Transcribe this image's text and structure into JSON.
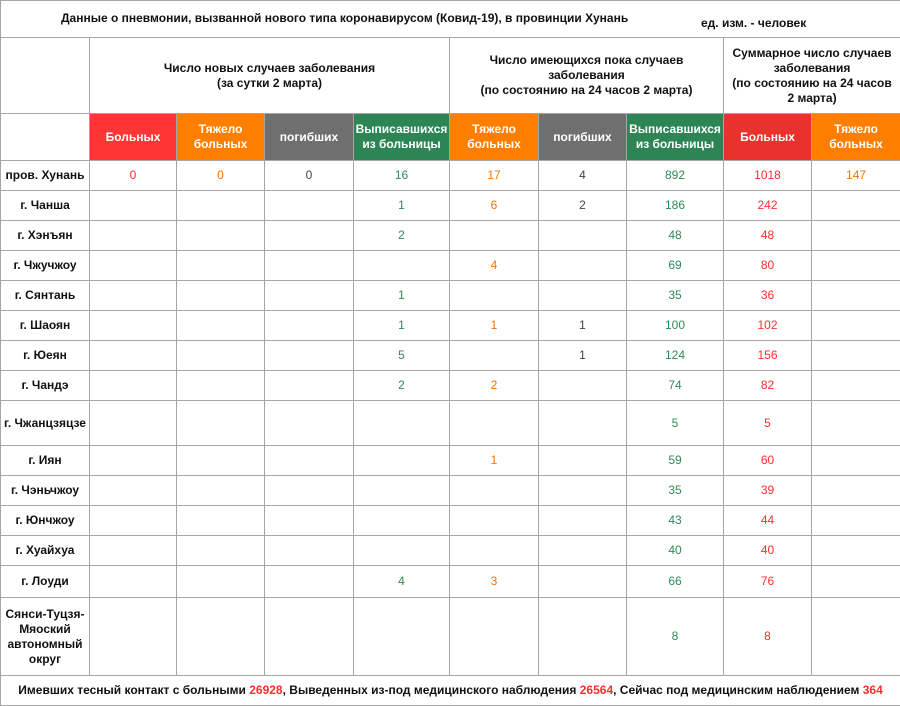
{
  "title": "Данные о пневмонии, вызванной нового типа коронавирусом (Ковид-19), в провинции Хунань",
  "unit": "ед. изм. - человек",
  "groups": [
    "Число новых случаев заболевания\n(за сутки 2 марта)",
    "Число имеющихся пока случаев заболевания\n(по состоянию на 24 часов 2 марта)",
    "Суммарное число случаев заболевания\n(по состоянию на 24 часов 2 марта)"
  ],
  "subheaders": [
    "Больных",
    "Тяжело больных",
    "погибших",
    "Выписавшихся из больницы",
    "Тяжело больных",
    "погибших",
    "Выписавшихся из больницы",
    "Больных",
    "Тяжело больных"
  ],
  "colors": {
    "red": "#fe3535",
    "orange": "#fe7f00",
    "gray": "#6f6f6f",
    "green": "#2d8555"
  },
  "rows": [
    {
      "name": "пров. Хунань",
      "v": [
        "0",
        "0",
        "0",
        "16",
        "17",
        "4",
        "892",
        "1018",
        "147"
      ]
    },
    {
      "name": "г. Чанша",
      "v": [
        "",
        "",
        "",
        "1",
        "6",
        "2",
        "186",
        "242",
        ""
      ]
    },
    {
      "name": "г. Хэнъян",
      "v": [
        "",
        "",
        "",
        "2",
        "",
        "",
        "48",
        "48",
        ""
      ]
    },
    {
      "name": "г. Чжучжоу",
      "v": [
        "",
        "",
        "",
        "",
        "4",
        "",
        "69",
        "80",
        ""
      ]
    },
    {
      "name": "г. Сянтань",
      "v": [
        "",
        "",
        "",
        "1",
        "",
        "",
        "35",
        "36",
        ""
      ]
    },
    {
      "name": "г. Шаоян",
      "v": [
        "",
        "",
        "",
        "1",
        "1",
        "1",
        "100",
        "102",
        ""
      ]
    },
    {
      "name": "г. Юеян",
      "v": [
        "",
        "",
        "",
        "5",
        "",
        "1",
        "124",
        "156",
        ""
      ]
    },
    {
      "name": "г. Чандэ",
      "v": [
        "",
        "",
        "",
        "2",
        "2",
        "",
        "74",
        "82",
        ""
      ]
    },
    {
      "name": "г. Чжанцзяцзе",
      "v": [
        "",
        "",
        "",
        "",
        "",
        "",
        "5",
        "5",
        ""
      ]
    },
    {
      "name": "г. Иян",
      "v": [
        "",
        "",
        "",
        "",
        "1",
        "",
        "59",
        "60",
        ""
      ]
    },
    {
      "name": "г. Чэньчжоу",
      "v": [
        "",
        "",
        "",
        "",
        "",
        "",
        "35",
        "39",
        ""
      ]
    },
    {
      "name": "г. Юнчжоу",
      "v": [
        "",
        "",
        "",
        "",
        "",
        "",
        "43",
        "44",
        ""
      ]
    },
    {
      "name": "г. Хуайхуа",
      "v": [
        "",
        "",
        "",
        "",
        "",
        "",
        "40",
        "40",
        ""
      ]
    },
    {
      "name": "г. Лоуди",
      "v": [
        "",
        "",
        "",
        "4",
        "3",
        "",
        "66",
        "76",
        ""
      ]
    },
    {
      "name": "Сянси-Туцзя-Мяоский автономный округ",
      "v": [
        "",
        "",
        "",
        "",
        "",
        "",
        "8",
        "8",
        ""
      ]
    }
  ],
  "footer": {
    "t1": "Имевших тесный контакт с больными ",
    "n1": "26928",
    "t2": ", Выведенных из-под медицинского наблюдения ",
    "n2": "26564",
    "t3": ", Сейчас под медицинским наблюдением ",
    "n3": "364"
  }
}
